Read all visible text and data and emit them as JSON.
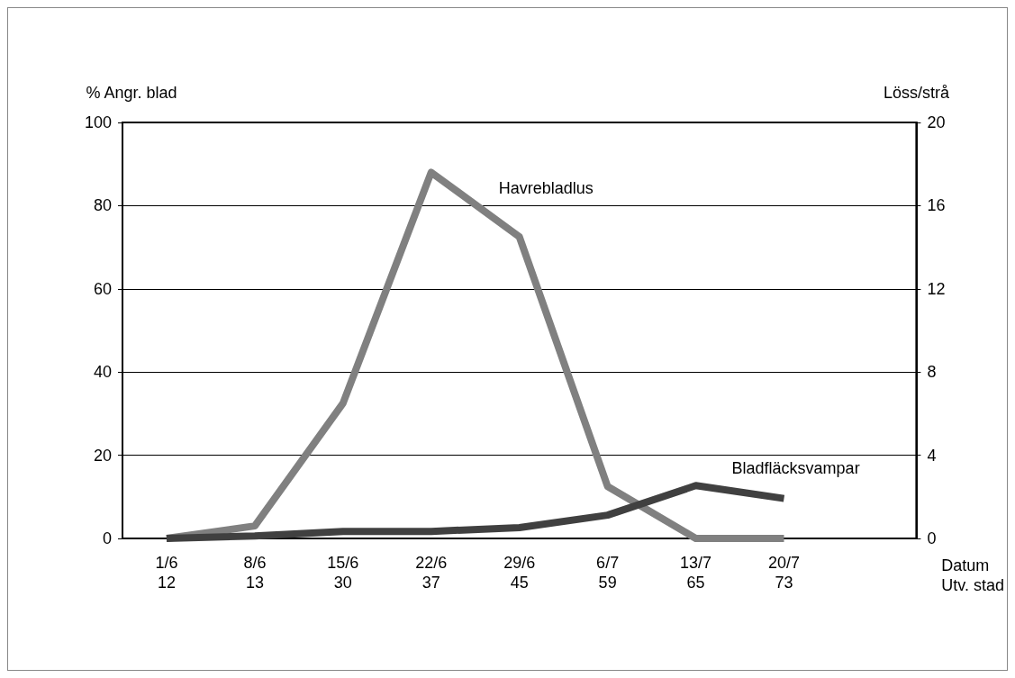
{
  "chart_data": {
    "type": "line",
    "categories": [
      "1/6\n12",
      "8/6\n13",
      "15/6\n30",
      "22/6\n37",
      "29/6\n45",
      "6/7\n59",
      "13/7\n65",
      "20/7\n73",
      null
    ],
    "xlabel": "Datum\nUtv. stad",
    "ylabel": "% Angr. blad",
    "y2label": "Löss/strå",
    "series": [
      {
        "name": "Havrebladlus",
        "color": "#808080",
        "axis": "y2",
        "values": [
          0,
          0.6,
          6.5,
          17.6,
          14.5,
          2.5,
          0,
          0,
          null
        ]
      },
      {
        "name": "Bladfläcksvampar",
        "color": "#404040",
        "values": [
          0,
          0.6,
          1.7,
          1.7,
          2.6,
          5.6,
          12.7,
          9.6,
          null
        ]
      }
    ],
    "ylim": [
      0,
      100
    ],
    "yticks": [
      0,
      20,
      40,
      60,
      80,
      100
    ],
    "y2lim": [
      0,
      20
    ],
    "y2ticks": [
      0,
      4,
      8,
      12,
      16,
      20
    ],
    "grid": "y",
    "legend": false,
    "marker": "none",
    "line_style": "solid"
  }
}
